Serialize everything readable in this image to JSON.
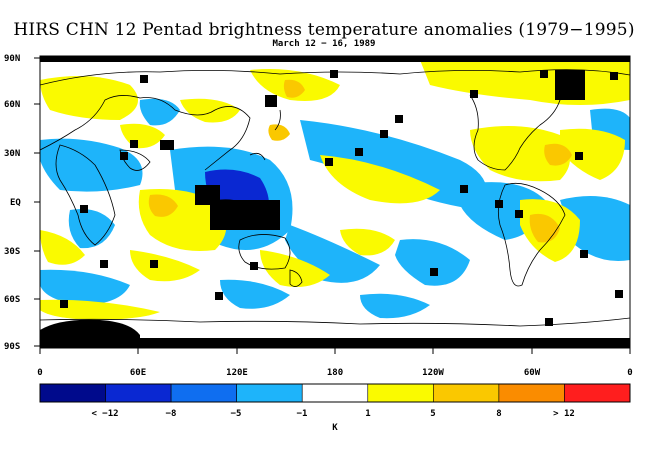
{
  "title": "HIRS CHN 12 Pentad brightness temperature anomalies (1979−1995)",
  "subtitle": "March 12 − 16, 1989",
  "lat_labels": [
    "90N",
    "60N",
    "30N",
    "EQ",
    "30S",
    "60S",
    "90S"
  ],
  "lon_labels": [
    "0",
    "60E",
    "120E",
    "180",
    "120W",
    "60W",
    "0"
  ],
  "colorbar": {
    "colors": [
      "#000a8c",
      "#0a28d2",
      "#0f6ef0",
      "#1eb4fa",
      "#ffffff",
      "#fafa00",
      "#fac800",
      "#fa8c00",
      "#ff1e1e"
    ],
    "labels": [
      "< −12",
      "−8",
      "−5",
      "−1",
      "1",
      "5",
      "8",
      "> 12"
    ],
    "unit": "K"
  },
  "map_colors": {
    "strong_cold": "#0a28d2",
    "cold": "#1eb4fa",
    "warm": "#fafa00",
    "strong_warm": "#fac800",
    "missing": "#000000"
  }
}
